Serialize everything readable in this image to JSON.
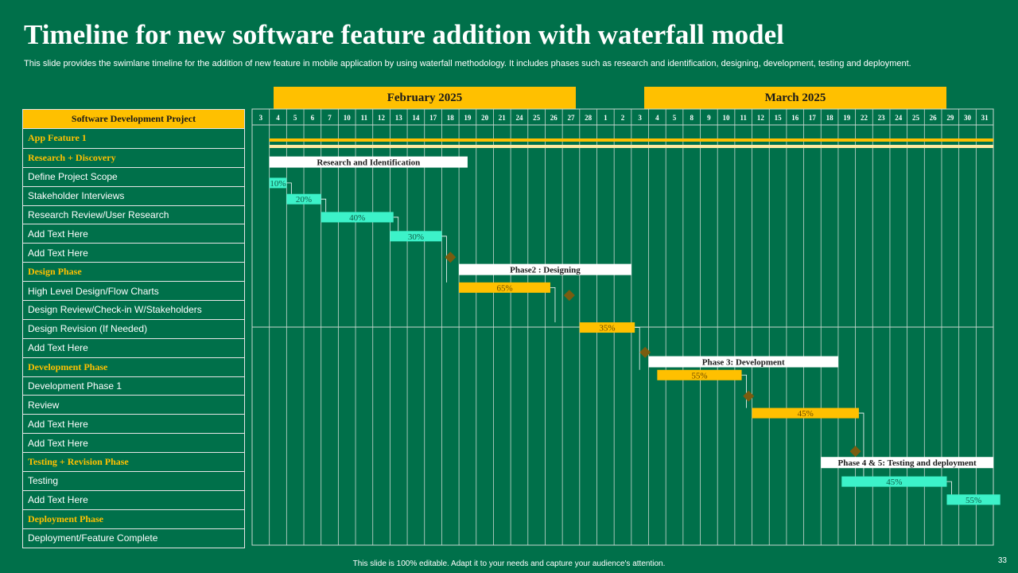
{
  "title": "Timeline for new software feature addition with waterfall model",
  "subtitle": "This slide provides the swimlane timeline for the addition of new feature in mobile application by using waterfall methodology. It includes phases such as research and identification, designing, development, testing and deployment.",
  "months": [
    "February  2025",
    "March 2025"
  ],
  "table": {
    "header": "Software  Development  Project",
    "rows": [
      {
        "label": "App  Feature 1",
        "phase": true
      },
      {
        "label": "Research + Discovery",
        "phase": true
      },
      {
        "label": "Define Project Scope",
        "phase": false
      },
      {
        "label": "Stakeholder Interviews",
        "phase": false
      },
      {
        "label": "Research Review/User Research",
        "phase": false
      },
      {
        "label": "Add Text Here",
        "phase": false
      },
      {
        "label": "Add Text Here",
        "phase": false
      },
      {
        "label": "Design Phase",
        "phase": true
      },
      {
        "label": "High Level Design/Flow Charts",
        "phase": false
      },
      {
        "label": "Design Review/Check-in W/Stakeholders",
        "phase": false
      },
      {
        "label": "Design Revision (If Needed)",
        "phase": false
      },
      {
        "label": "Add Text Here",
        "phase": false
      },
      {
        "label": "Development Phase",
        "phase": true
      },
      {
        "label": "Development Phase 1",
        "phase": false
      },
      {
        "label": "Review",
        "phase": false
      },
      {
        "label": "Add Text Here",
        "phase": false
      },
      {
        "label": "Add Text Here",
        "phase": false
      },
      {
        "label": "Testing + Revision Phase",
        "phase": true
      },
      {
        "label": "Testing",
        "phase": false
      },
      {
        "label": "Add Text Here",
        "phase": false
      },
      {
        "label": "Deployment Phase",
        "phase": true
      },
      {
        "label": "Deployment/Feature Complete",
        "phase": false
      }
    ]
  },
  "chart_data": {
    "type": "gantt",
    "title": "Timeline for new software feature addition with waterfall model",
    "day_columns": [
      "3",
      "4",
      "5",
      "6",
      "7",
      "10",
      "11",
      "12",
      "13",
      "14",
      "17",
      "18",
      "19",
      "20",
      "21",
      "24",
      "25",
      "26",
      "27",
      "28",
      "1",
      "2",
      "3",
      "4",
      "5",
      "8",
      "9",
      "10",
      "11",
      "12",
      "15",
      "16",
      "17",
      "18",
      "19",
      "22",
      "23",
      "24",
      "25",
      "26",
      "29",
      "30",
      "31"
    ],
    "summary_bar": {
      "start_col": 1,
      "end_col": 43
    },
    "phases": [
      {
        "label": "Research and Identification",
        "start_col": 1,
        "end_col": 12.5
      },
      {
        "label": "Phase2 : Designing",
        "start_col": 12,
        "end_col": 22
      },
      {
        "label": "Phase 3: Development",
        "start_col": 23,
        "end_col": 34
      },
      {
        "label": "Phase 4 & 5: Testing and deployment",
        "start_col": 33,
        "end_col": 43
      }
    ],
    "tasks": [
      {
        "label": "10%",
        "value": 10,
        "start_col": 1,
        "end_col": 2,
        "color": "aqua"
      },
      {
        "label": "20%",
        "value": 20,
        "start_col": 2,
        "end_col": 4,
        "color": "aqua"
      },
      {
        "label": "40%",
        "value": 40,
        "start_col": 4,
        "end_col": 8.2,
        "color": "aqua"
      },
      {
        "label": "30%",
        "value": 30,
        "start_col": 8,
        "end_col": 11,
        "color": "aqua"
      },
      {
        "label": "65%",
        "value": 65,
        "start_col": 12,
        "end_col": 17.3,
        "color": "gold"
      },
      {
        "label": "35%",
        "value": 35,
        "start_col": 19,
        "end_col": 22.2,
        "color": "gold"
      },
      {
        "label": "55%",
        "value": 55,
        "start_col": 23.5,
        "end_col": 28.4,
        "color": "gold"
      },
      {
        "label": "45%",
        "value": 45,
        "start_col": 29,
        "end_col": 35.2,
        "color": "gold"
      },
      {
        "label": "45%",
        "value": 45,
        "start_col": 34.2,
        "end_col": 40.3,
        "color": "aqua"
      },
      {
        "label": "55%",
        "value": 55,
        "start_col": 40.3,
        "end_col": 43.4,
        "color": "aqua"
      }
    ],
    "milestones": [
      {
        "col": 11.5,
        "row": 7
      },
      {
        "col": 18.4,
        "row": 9
      },
      {
        "col": 22.8,
        "row": 12
      },
      {
        "col": 28.8,
        "row": 14.3
      },
      {
        "col": 35,
        "row": 17.2
      }
    ],
    "colors": {
      "gold": "#FFC000",
      "aqua": "#3CF2C9",
      "milestone": "#7A5C10",
      "phase_label_bg": "#FFFFFF",
      "grid": "#C8D8D0"
    }
  },
  "footer": "This slide is 100% editable.  Adapt it to your needs and capture your audience's attention.",
  "page_number": "33"
}
